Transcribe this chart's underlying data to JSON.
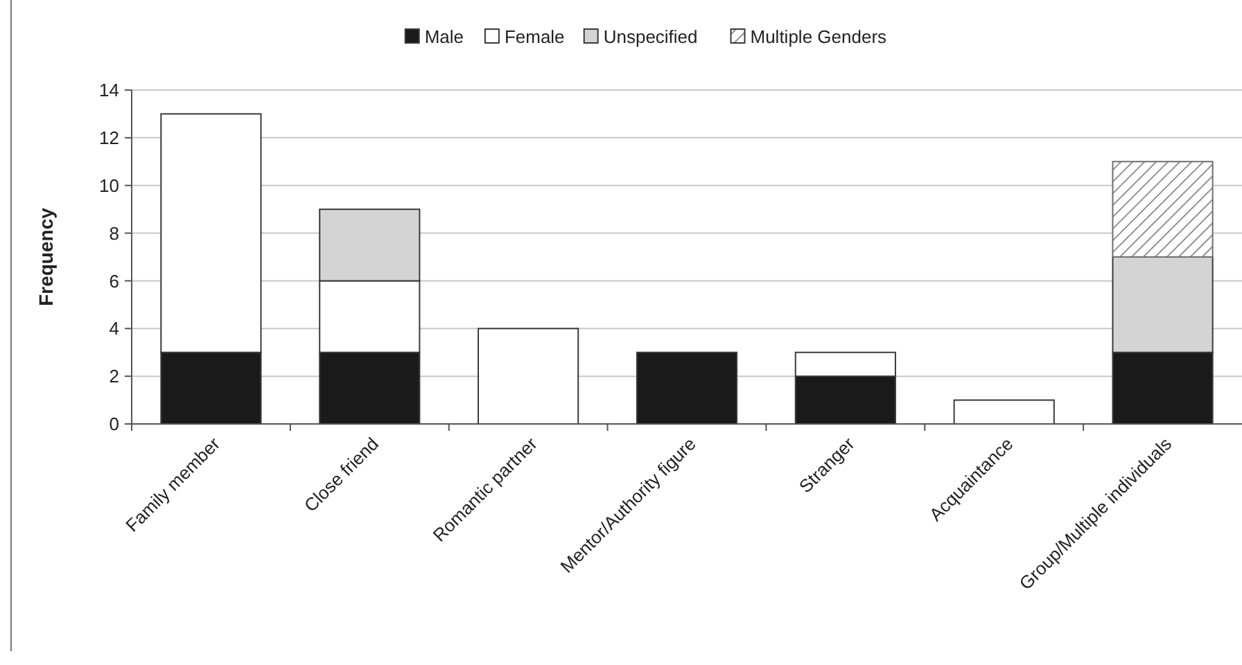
{
  "chart_data": {
    "type": "bar",
    "stacked": true,
    "ylabel": "Frequency",
    "categories": [
      "Family member",
      "Close friend",
      "Romantic partner",
      "Mentor/Authority figure",
      "Stranger",
      "Acquaintance",
      "Group/Multiple individuals"
    ],
    "series": [
      {
        "name": "Male",
        "color": "#1a1a1a",
        "values": [
          3,
          3,
          0,
          3,
          2,
          0,
          3
        ]
      },
      {
        "name": "Female",
        "color": "#ffffff",
        "values": [
          10,
          3,
          4,
          0,
          1,
          1,
          0
        ]
      },
      {
        "name": "Unspecified",
        "color": "#d4d4d4",
        "values": [
          0,
          3,
          0,
          0,
          0,
          0,
          4
        ]
      },
      {
        "name": "Multiple Genders",
        "color": "#6e6e6e",
        "values": [
          0,
          0,
          0,
          0,
          0,
          0,
          4
        ]
      }
    ],
    "ylim": [
      0,
      14
    ],
    "yticks": [
      0,
      2,
      4,
      6,
      8,
      10,
      12,
      14
    ],
    "grid": "y",
    "legend": "top"
  }
}
